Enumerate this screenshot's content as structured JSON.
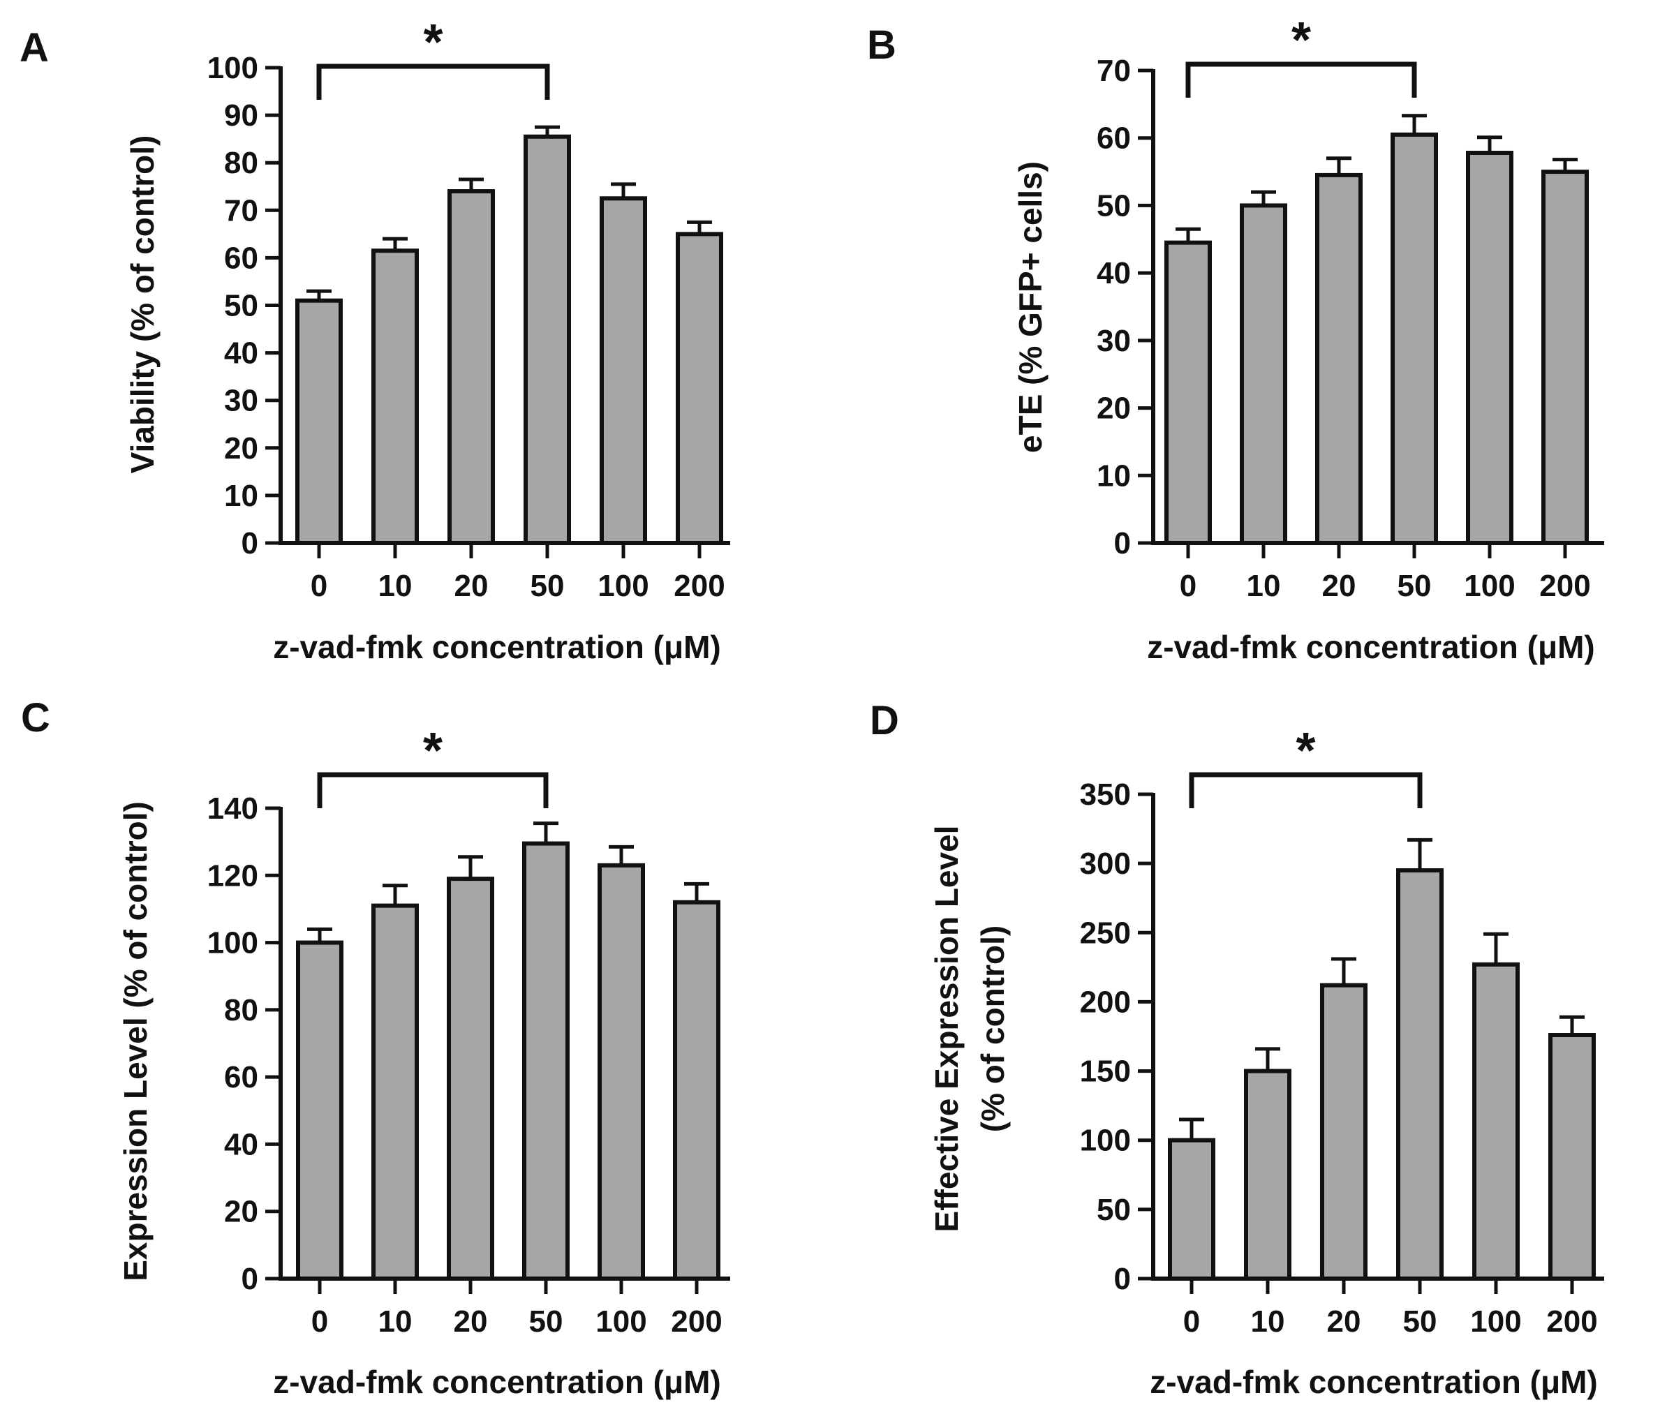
{
  "colors": {
    "bar_fill": "#a6a6a6",
    "ink": "#111111",
    "background": "#ffffff"
  },
  "chart_data": [
    {
      "panel": "A",
      "type": "bar",
      "categories": [
        "0",
        "10",
        "20",
        "50",
        "100",
        "200"
      ],
      "values": [
        51,
        61.5,
        74,
        85.5,
        72.5,
        65
      ],
      "errors": [
        2,
        2.5,
        2.5,
        2,
        3,
        2.5
      ],
      "ylabel": "Viability (% of control)",
      "xlabel": "z-vad-fmk concentration (μM)",
      "ylim": [
        0,
        100
      ],
      "yticks": [
        0,
        10,
        20,
        30,
        40,
        50,
        60,
        70,
        80,
        90,
        100
      ],
      "significance": {
        "from": "0",
        "to": "50",
        "label": "*"
      }
    },
    {
      "panel": "B",
      "type": "bar",
      "categories": [
        "0",
        "10",
        "20",
        "50",
        "100",
        "200"
      ],
      "values": [
        44.5,
        50,
        54.5,
        60.5,
        57.8,
        55
      ],
      "errors": [
        2,
        2,
        2.5,
        2.8,
        2.3,
        1.8
      ],
      "ylabel": "eTE (% GFP+ cells)",
      "xlabel": "z-vad-fmk concentration (μM)",
      "ylim": [
        0,
        70
      ],
      "yticks": [
        0,
        10,
        20,
        30,
        40,
        50,
        60,
        70
      ],
      "significance": {
        "from": "0",
        "to": "50",
        "label": "*"
      }
    },
    {
      "panel": "C",
      "type": "bar",
      "categories": [
        "0",
        "10",
        "20",
        "50",
        "100",
        "200"
      ],
      "values": [
        100,
        111,
        119,
        129.5,
        123,
        112
      ],
      "errors": [
        4,
        6,
        6.5,
        6,
        5.5,
        5.5
      ],
      "ylabel": "Expression Level (% of control)",
      "xlabel": "z-vad-fmk concentration (μM)",
      "ylim": [
        0,
        140
      ],
      "yticks": [
        0,
        20,
        40,
        60,
        80,
        100,
        120,
        140
      ],
      "significance": {
        "from": "0",
        "to": "50",
        "label": "*"
      }
    },
    {
      "panel": "D",
      "type": "bar",
      "categories": [
        "0",
        "10",
        "20",
        "50",
        "100",
        "200"
      ],
      "values": [
        100,
        150,
        212,
        295,
        227,
        176
      ],
      "errors": [
        15,
        16,
        19,
        22,
        22,
        13
      ],
      "ylabel": "Effective Expression Level",
      "ylabel2": "(% of control)",
      "xlabel": "z-vad-fmk concentration (μM)",
      "ylim": [
        0,
        350
      ],
      "yticks": [
        0,
        50,
        100,
        150,
        200,
        250,
        300,
        350
      ],
      "significance": {
        "from": "0",
        "to": "50",
        "label": "*"
      }
    }
  ]
}
